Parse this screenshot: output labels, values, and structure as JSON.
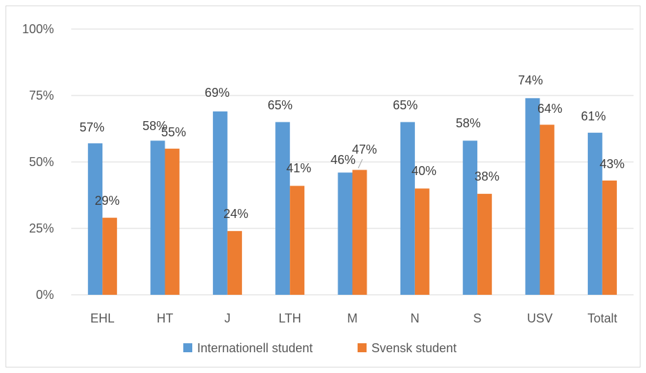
{
  "chart_data": {
    "type": "bar",
    "categories": [
      "EHL",
      "HT",
      "J",
      "LTH",
      "M",
      "N",
      "S",
      "USV",
      "Totalt"
    ],
    "series": [
      {
        "name": "Internationell student",
        "color": "#5b9bd5",
        "values": [
          57,
          58,
          69,
          65,
          46,
          65,
          58,
          74,
          61
        ],
        "labels": [
          "57%",
          "58%",
          "69%",
          "65%",
          "46%",
          "65%",
          "58%",
          "74%",
          "61%"
        ]
      },
      {
        "name": "Svensk student",
        "color": "#ed7d31",
        "values": [
          29,
          55,
          24,
          41,
          47,
          40,
          38,
          64,
          43
        ],
        "labels": [
          "29%",
          "55%",
          "24%",
          "41%",
          "47%",
          "40%",
          "38%",
          "64%",
          "43%"
        ]
      }
    ],
    "yticks": [
      "0%",
      "25%",
      "50%",
      "75%",
      "100%"
    ],
    "ylim": [
      0,
      100
    ],
    "grid": true,
    "legend": "bottom"
  }
}
